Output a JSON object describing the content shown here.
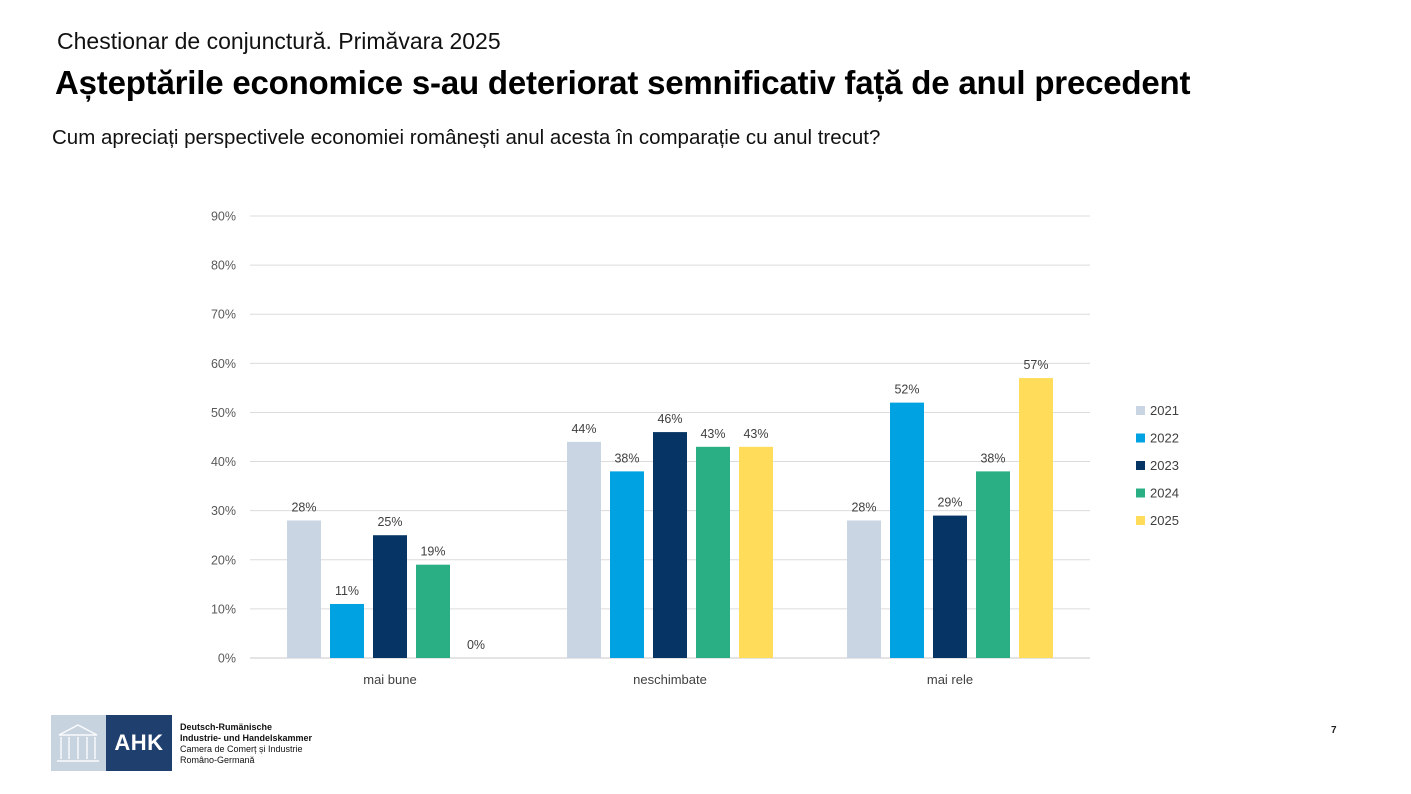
{
  "header": {
    "survey_title": "Chestionar de conjunctură. Primăvara 2025",
    "headline": "Așteptările economice s-au deteriorat semnificativ față de anul precedent",
    "question": "Cum apreciați perspectivele economiei românești anul acesta în comparație cu anul trecut?"
  },
  "chart_data": {
    "type": "bar",
    "categories": [
      "mai bune",
      "neschimbate",
      "mai rele"
    ],
    "series": [
      {
        "name": "2021",
        "color": "#c9d5e3",
        "values": [
          28,
          44,
          28
        ],
        "labels": [
          "28%",
          "44%",
          "28%"
        ]
      },
      {
        "name": "2022",
        "color": "#00a2e1",
        "values": [
          11,
          38,
          52
        ],
        "labels": [
          "11%",
          "38%",
          "52%"
        ]
      },
      {
        "name": "2023",
        "color": "#063464",
        "values": [
          25,
          46,
          29
        ],
        "labels": [
          "25%",
          "46%",
          "29%"
        ]
      },
      {
        "name": "2024",
        "color": "#2aaf85",
        "values": [
          19,
          43,
          38
        ],
        "labels": [
          "19%",
          "43%",
          "38%"
        ]
      },
      {
        "name": "2025",
        "color": "#ffdd5a",
        "values": [
          0,
          43,
          57
        ],
        "labels": [
          "0%",
          "43%",
          "57%"
        ]
      }
    ],
    "ylim": [
      0,
      90
    ],
    "yticks": [
      "0%",
      "10%",
      "20%",
      "30%",
      "40%",
      "50%",
      "60%",
      "70%",
      "80%",
      "90%"
    ],
    "grid": true,
    "legend_position": "right"
  },
  "footer": {
    "logo_text": "AHK",
    "org_line_1": "Deutsch-Rumänische",
    "org_line_2": "Industrie- und Handelskammer",
    "org_line_3": "Camera de Comerț și Industrie",
    "org_line_4": "Româno-Germană",
    "page_number": "7"
  }
}
